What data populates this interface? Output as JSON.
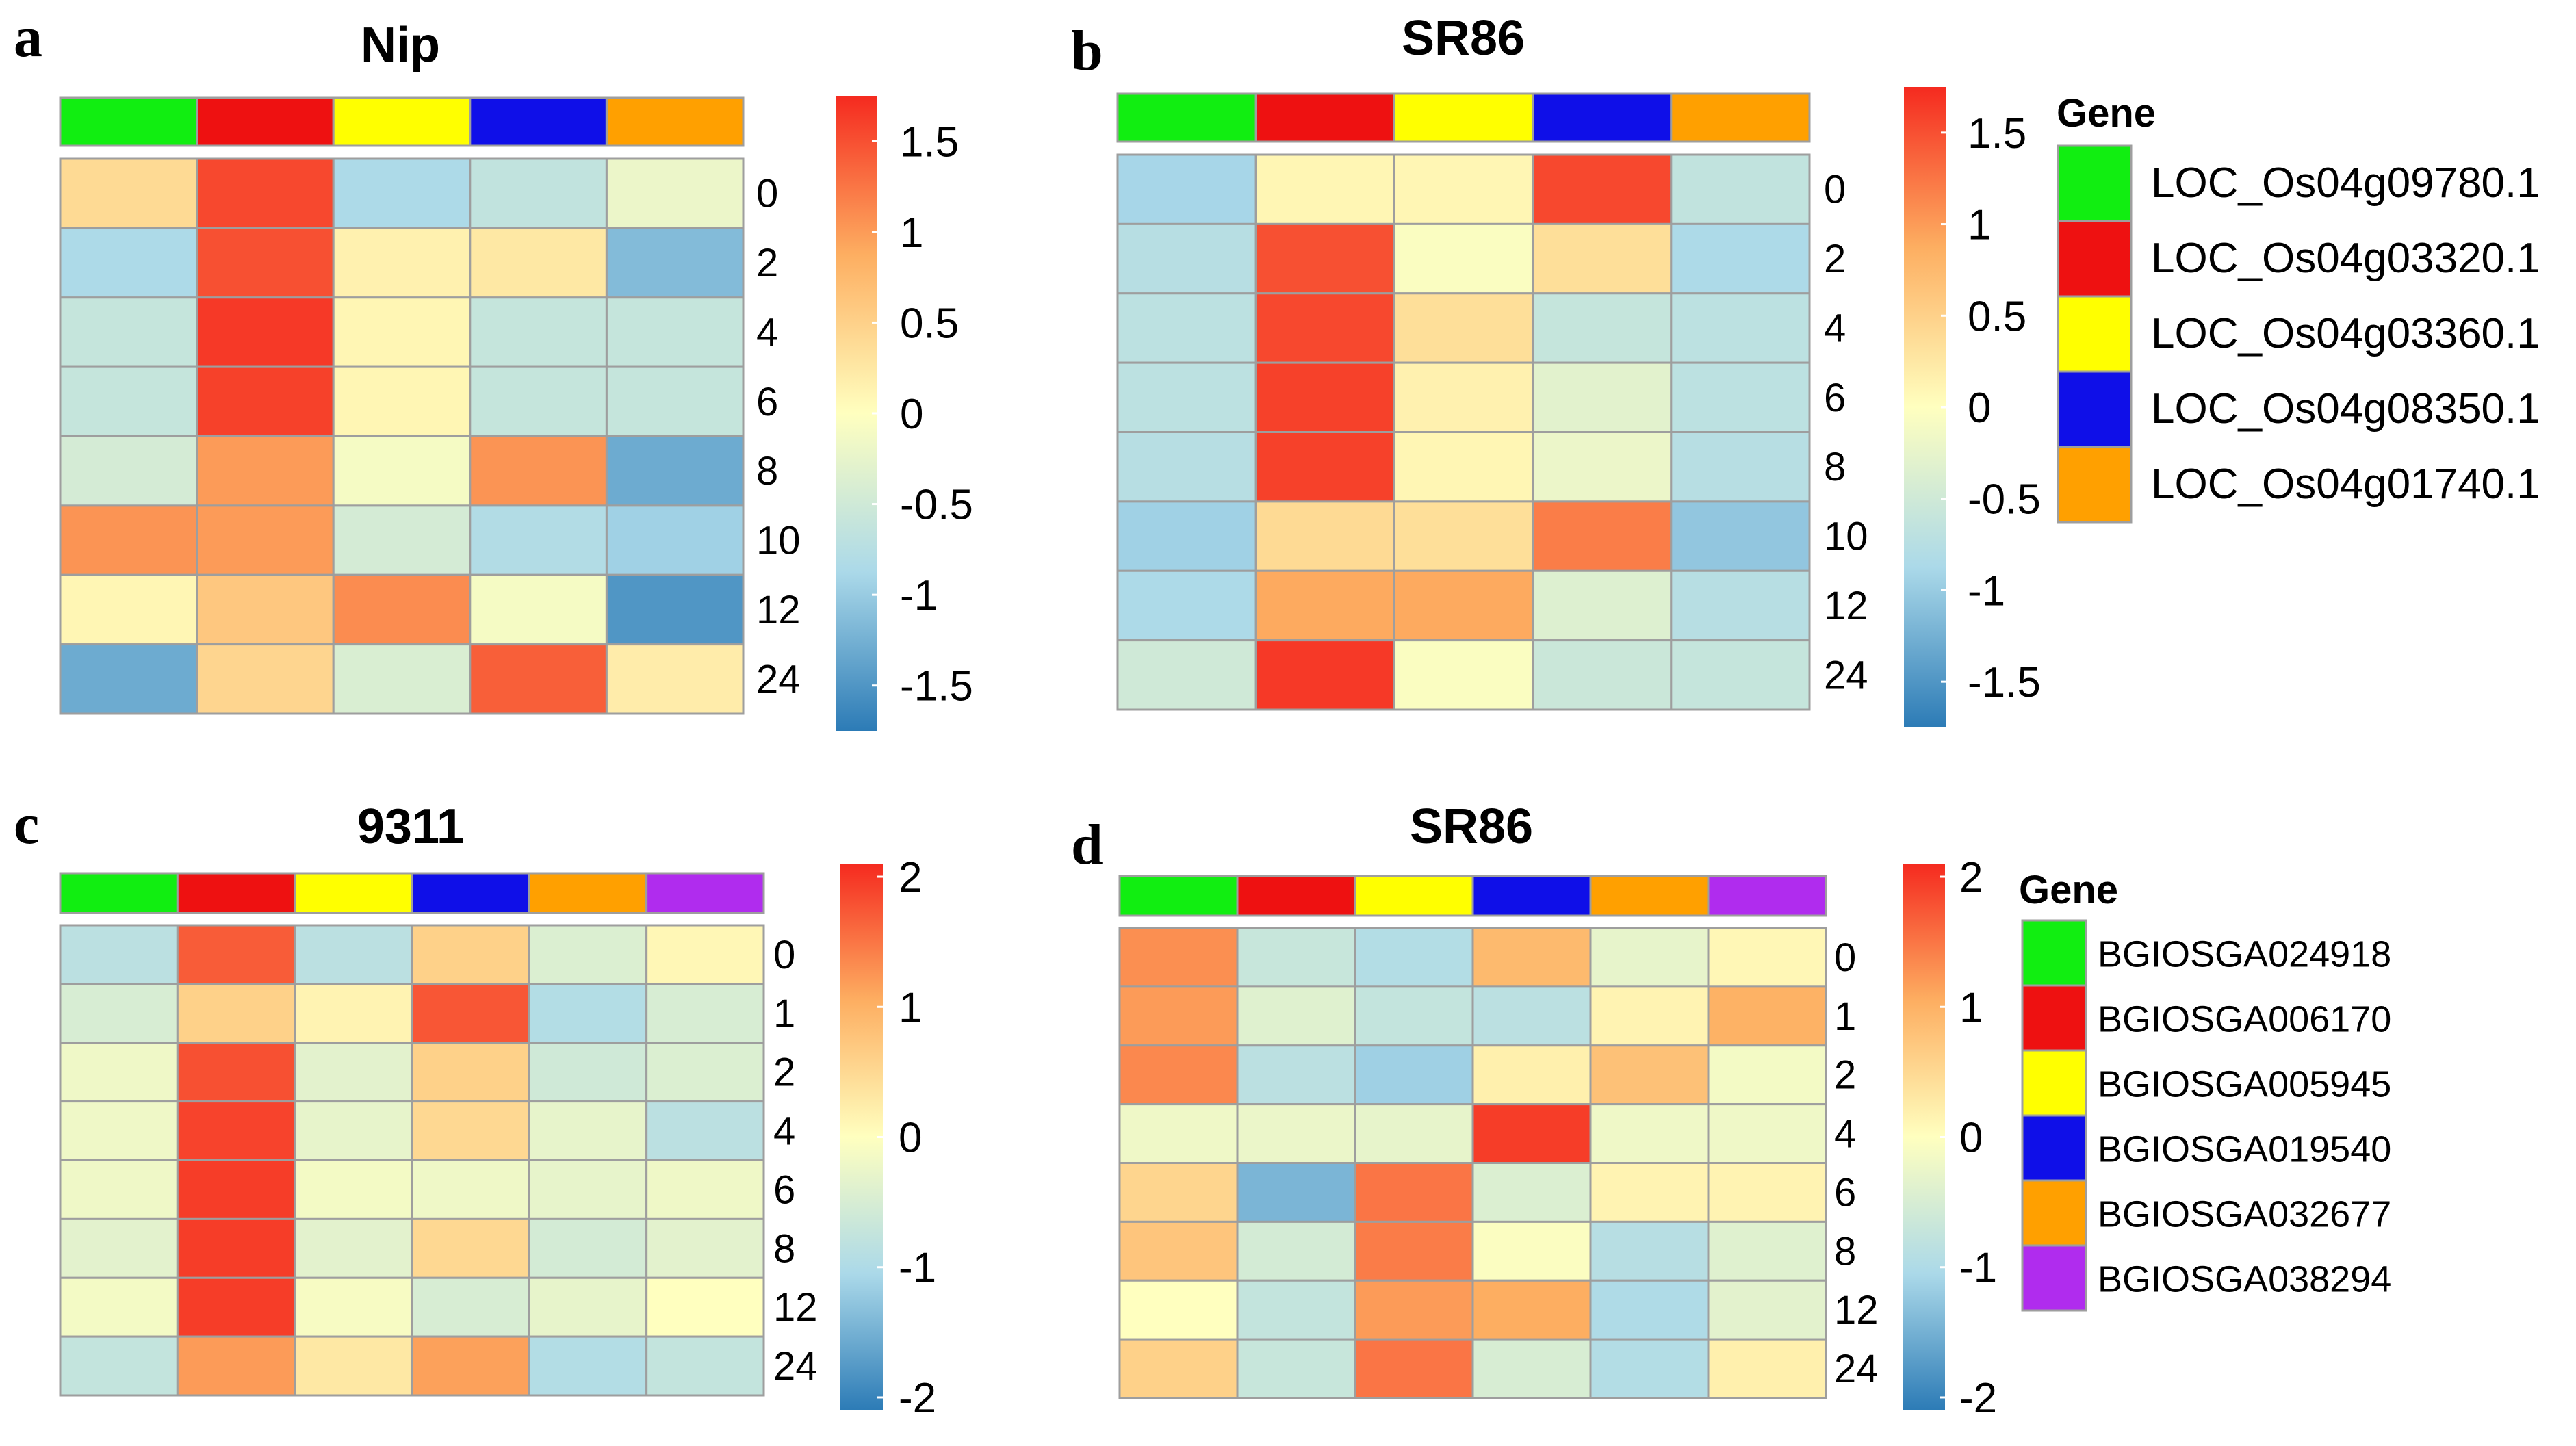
{
  "colors": {
    "scale": [
      "#2C7BB6",
      "#ABD9E9",
      "#FFFFBF",
      "#FDAE61",
      "#F52A1F"
    ],
    "cell_border": "#9E9E9E"
  },
  "legend_top": {
    "title": "Gene",
    "items": [
      {
        "label": "LOC_Os04g09780.1",
        "color": "#11EE11"
      },
      {
        "label": "LOC_Os04g03320.1",
        "color": "#EE1111"
      },
      {
        "label": "LOC_Os04g03360.1",
        "color": "#FFFF00"
      },
      {
        "label": "LOC_Os04g08350.1",
        "color": "#0F0FE8"
      },
      {
        "label": "LOC_Os04g01740.1",
        "color": "#FFA000"
      }
    ]
  },
  "legend_bottom": {
    "title": "Gene",
    "items": [
      {
        "label": "BGIOSGA024918",
        "color": "#11EE11"
      },
      {
        "label": "BGIOSGA006170",
        "color": "#EE1111"
      },
      {
        "label": "BGIOSGA005945",
        "color": "#FFFF00"
      },
      {
        "label": "BGIOSGA019540",
        "color": "#0F0FE8"
      },
      {
        "label": "BGIOSGA032677",
        "color": "#FFA000"
      },
      {
        "label": "BGIOSGA038294",
        "color": "#B02CEE"
      }
    ]
  },
  "chart_data": [
    {
      "type": "heatmap",
      "panel_label": "a",
      "title": "Nip",
      "legend": "legend_top",
      "column_colors": [
        "#11EE11",
        "#EE1111",
        "#FFFF00",
        "#0F0FE8",
        "#FFA000"
      ],
      "rows": [
        "0",
        "2",
        "4",
        "6",
        "8",
        "10",
        "12",
        "24"
      ],
      "values": [
        [
          0.4,
          1.55,
          -0.85,
          -0.65,
          -0.2
        ],
        [
          -0.85,
          1.5,
          0.15,
          0.25,
          -1.15
        ],
        [
          -0.6,
          1.65,
          0.1,
          -0.6,
          -0.6
        ],
        [
          -0.6,
          1.6,
          0.1,
          -0.6,
          -0.6
        ],
        [
          -0.45,
          1.0,
          -0.1,
          1.05,
          -1.3
        ],
        [
          1.05,
          1.0,
          -0.45,
          -0.8,
          -0.95
        ],
        [
          0.1,
          0.6,
          1.1,
          -0.1,
          -1.5
        ],
        [
          -1.3,
          0.45,
          -0.4,
          1.4,
          0.2
        ]
      ],
      "scale_ticks": [
        "1.5",
        "1",
        "0.5",
        "0",
        "-0.5",
        "-1",
        "-1.5"
      ],
      "scale_tick_values": [
        1.5,
        1,
        0.5,
        0,
        -0.5,
        -1,
        -1.5
      ],
      "scale_range": [
        -1.75,
        1.75
      ]
    },
    {
      "type": "heatmap",
      "panel_label": "b",
      "title": "SR86",
      "legend": "legend_top",
      "column_colors": [
        "#11EE11",
        "#EE1111",
        "#FFFF00",
        "#0F0FE8",
        "#FFA000"
      ],
      "rows": [
        "0",
        "2",
        "4",
        "6",
        "8",
        "10",
        "12",
        "24"
      ],
      "values": [
        [
          -0.9,
          0.1,
          0.1,
          1.55,
          -0.65
        ],
        [
          -0.75,
          1.5,
          -0.05,
          0.35,
          -0.85
        ],
        [
          -0.7,
          1.55,
          0.35,
          -0.6,
          -0.7
        ],
        [
          -0.7,
          1.6,
          0.15,
          -0.3,
          -0.7
        ],
        [
          -0.75,
          1.6,
          0.1,
          -0.2,
          -0.75
        ],
        [
          -0.95,
          0.4,
          0.35,
          1.2,
          -1.05
        ],
        [
          -0.85,
          0.9,
          0.9,
          -0.35,
          -0.75
        ],
        [
          -0.5,
          1.65,
          -0.05,
          -0.55,
          -0.6
        ]
      ],
      "scale_ticks": [
        "1.5",
        "1",
        "0.5",
        "0",
        "-0.5",
        "-1",
        "-1.5"
      ],
      "scale_tick_values": [
        1.5,
        1,
        0.5,
        0,
        -0.5,
        -1,
        -1.5
      ],
      "scale_range": [
        -1.75,
        1.75
      ]
    },
    {
      "type": "heatmap",
      "panel_label": "c",
      "title": "9311",
      "legend": "legend_bottom",
      "column_colors": [
        "#11EE11",
        "#EE1111",
        "#FFFF00",
        "#0F0FE8",
        "#FFA000",
        "#B02CEE"
      ],
      "rows": [
        "0",
        "1",
        "2",
        "4",
        "6",
        "8",
        "12",
        "24"
      ],
      "values": [
        [
          -0.85,
          1.7,
          -0.85,
          0.6,
          -0.45,
          0.1
        ],
        [
          -0.5,
          0.6,
          0.15,
          1.75,
          -0.95,
          -0.5
        ],
        [
          -0.2,
          1.8,
          -0.35,
          0.6,
          -0.6,
          -0.45
        ],
        [
          -0.2,
          1.9,
          -0.3,
          0.5,
          -0.3,
          -0.85
        ],
        [
          -0.2,
          1.95,
          -0.15,
          -0.2,
          -0.3,
          -0.2
        ],
        [
          -0.35,
          1.95,
          -0.35,
          0.5,
          -0.55,
          -0.35
        ],
        [
          -0.15,
          1.95,
          -0.1,
          -0.5,
          -0.3,
          0.0
        ],
        [
          -0.75,
          1.2,
          0.3,
          1.15,
          -0.95,
          -0.75
        ]
      ],
      "scale_ticks": [
        "2",
        "1",
        "0",
        "-1",
        "-2"
      ],
      "scale_tick_values": [
        2,
        1,
        0,
        -1,
        -2
      ],
      "scale_range": [
        -2.1,
        2.1
      ]
    },
    {
      "type": "heatmap",
      "panel_label": "d",
      "title": "SR86",
      "legend": "legend_bottom",
      "column_colors": [
        "#11EE11",
        "#EE1111",
        "#FFFF00",
        "#0F0FE8",
        "#FFA000",
        "#B02CEE"
      ],
      "rows": [
        "0",
        "1",
        "2",
        "4",
        "6",
        "8",
        "12",
        "24"
      ],
      "values": [
        [
          1.3,
          -0.7,
          -0.95,
          0.9,
          -0.3,
          0.1
        ],
        [
          1.2,
          -0.4,
          -0.75,
          -0.85,
          0.15,
          1.0
        ],
        [
          1.35,
          -0.85,
          -1.15,
          0.2,
          0.8,
          -0.15
        ],
        [
          -0.2,
          -0.25,
          -0.3,
          1.95,
          -0.2,
          -0.2
        ],
        [
          0.55,
          -1.45,
          1.5,
          -0.45,
          0.15,
          0.15
        ],
        [
          0.75,
          -0.55,
          1.45,
          -0.05,
          -0.9,
          -0.4
        ],
        [
          0.0,
          -0.75,
          1.2,
          1.05,
          -1.0,
          -0.35
        ],
        [
          0.6,
          -0.7,
          1.5,
          -0.5,
          -0.95,
          0.2
        ]
      ],
      "scale_ticks": [
        "2",
        "1",
        "0",
        "-1",
        "-2"
      ],
      "scale_tick_values": [
        2,
        1,
        0,
        -1,
        -2
      ],
      "scale_range": [
        -2.1,
        2.1
      ]
    }
  ]
}
